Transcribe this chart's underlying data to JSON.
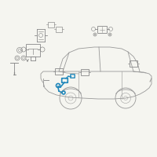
{
  "bg_color": "#f5f5f0",
  "car_color": "#999999",
  "comp_color": "#888888",
  "highlight_color": "#2288bb",
  "figsize": [
    2.0,
    2.0
  ],
  "dpi": 100
}
